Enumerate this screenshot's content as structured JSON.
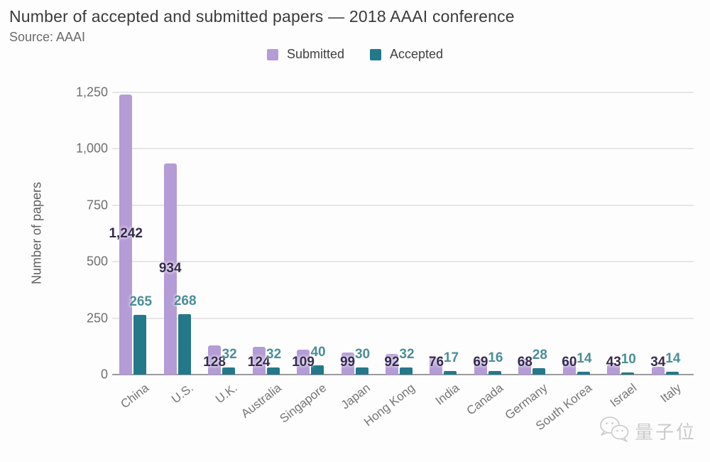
{
  "title": "Number of accepted and submitted papers — 2018 AAAI conference",
  "source": "Source: AAAI",
  "y_axis": {
    "label": "Number of papers"
  },
  "watermark": "量子位",
  "colors": {
    "submitted": "#b49cd6",
    "accepted": "#23798a",
    "submitted_label": "#342a4e",
    "accepted_label": "#4b8e97",
    "grid": "#e6e6e6",
    "axis": "#9b9b9b"
  },
  "chart_data": {
    "type": "bar",
    "title": "Number of accepted and submitted papers — 2018 AAAI conference",
    "subtitle": "Source: AAAI",
    "categories": [
      "China",
      "U.S.",
      "U.K.",
      "Australia",
      "Singapore",
      "Japan",
      "Hong Kong",
      "India",
      "Canada",
      "Germany",
      "South Korea",
      "Israel",
      "Italy"
    ],
    "series": [
      {
        "name": "Submitted",
        "color": "#b49cd6",
        "values": [
          1242,
          934,
          128,
          124,
          109,
          99,
          92,
          76,
          69,
          68,
          60,
          43,
          34
        ]
      },
      {
        "name": "Accepted",
        "color": "#23798a",
        "values": [
          265,
          268,
          32,
          32,
          40,
          30,
          32,
          17,
          16,
          28,
          14,
          10,
          14
        ]
      }
    ],
    "xlabel": "",
    "ylabel": "Number of papers",
    "ylim": [
      0,
      1250
    ],
    "yticks": [
      0,
      250,
      500,
      750,
      1000,
      1250
    ],
    "grid": true,
    "legend_position": "top",
    "data_labels": true
  }
}
